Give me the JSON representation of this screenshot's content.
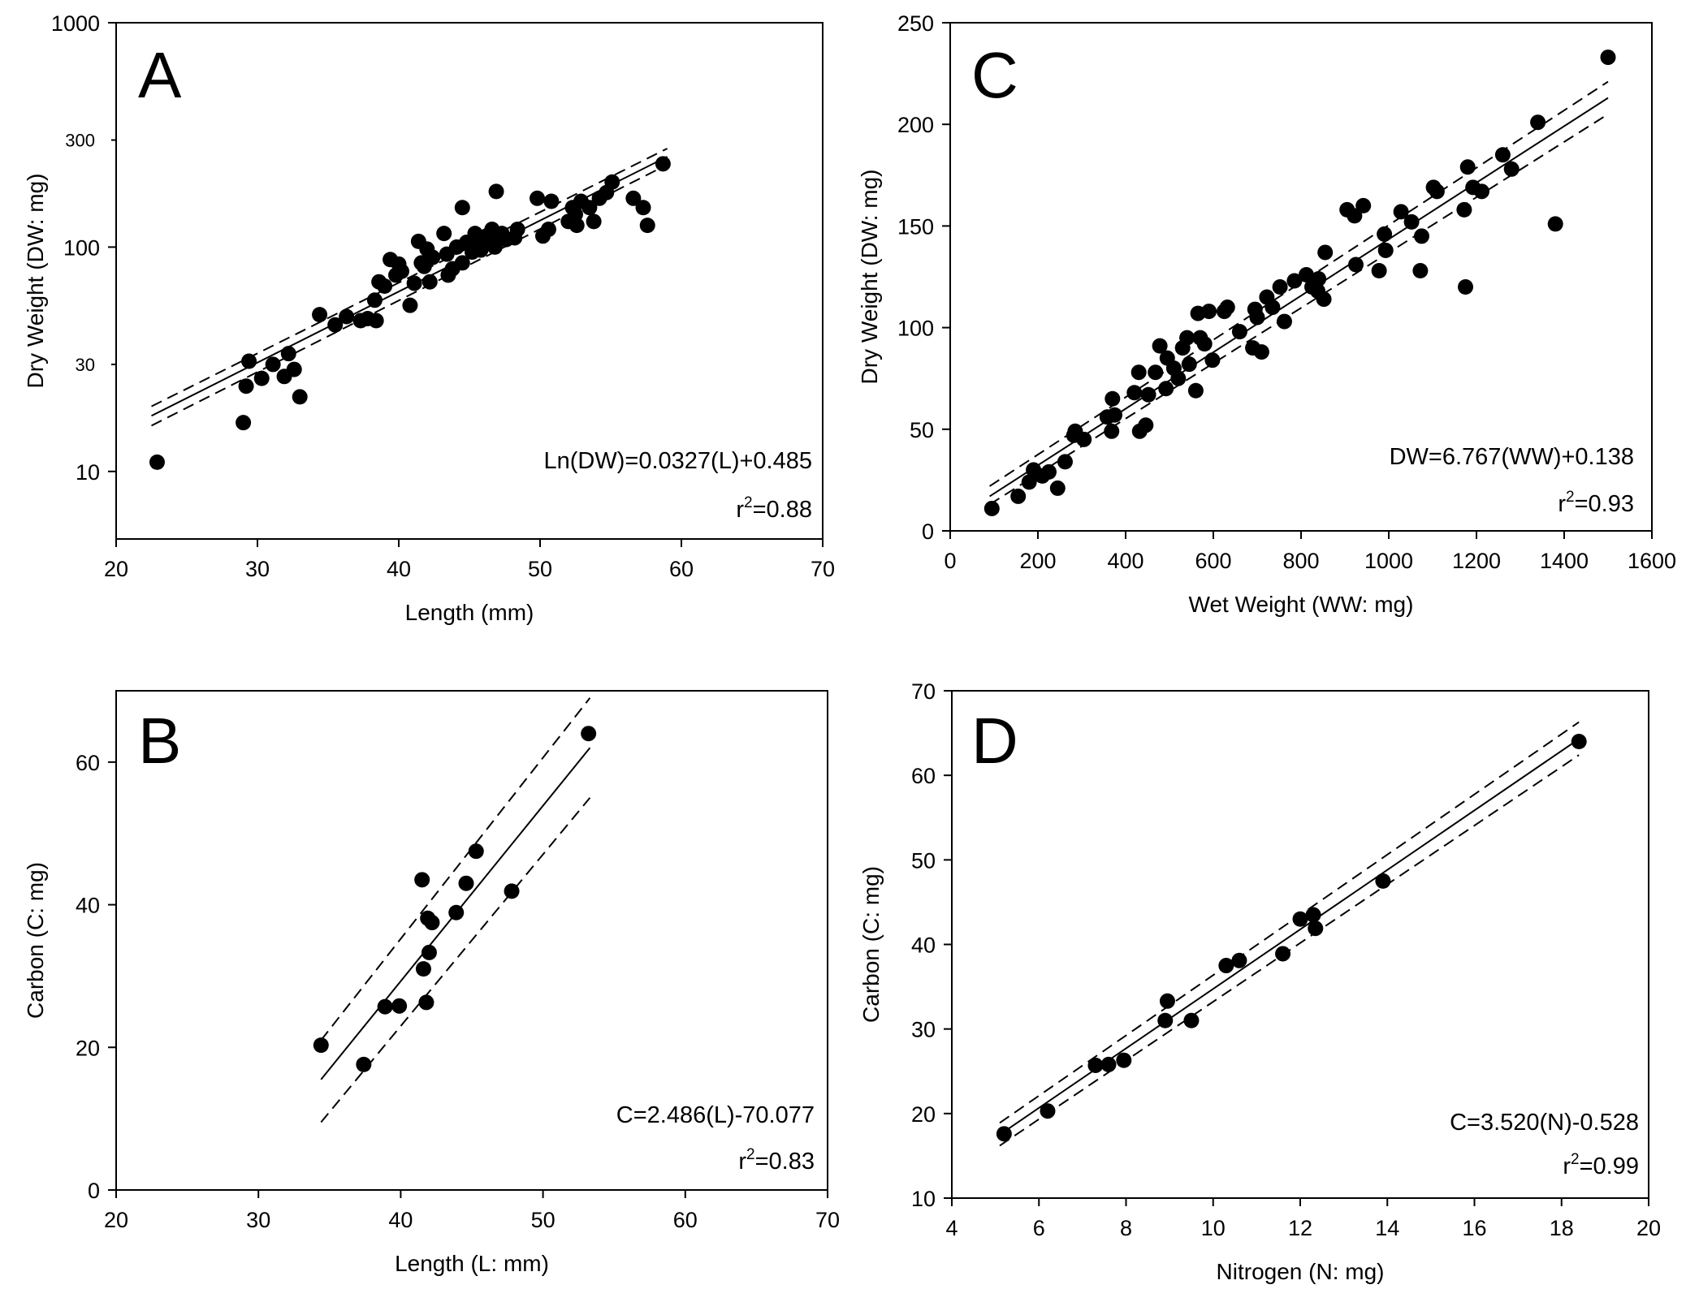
{
  "chart_data": [
    {
      "id": "A",
      "type": "scatter",
      "panel_label": "A",
      "xlabel": "Length (mm)",
      "ylabel": "Dry Weight (DW: mg)",
      "yscale": "log",
      "xlim": [
        20,
        70
      ],
      "ylim": [
        5,
        1000
      ],
      "x_ticks": [
        20,
        30,
        40,
        50,
        60,
        70
      ],
      "y_ticks_major": [
        10,
        100,
        1000
      ],
      "y_ticks_minor": [
        30,
        300
      ],
      "equation": "Ln(DW)=0.0327(L)+0.485",
      "r2_prefix": "r",
      "r2_sup": "2",
      "r2_value": "=0.88",
      "fit": {
        "x_range": [
          22.5,
          59
        ],
        "lower_at_start": 16,
        "upper_at_start": 19.5,
        "fit_at_start": 17.7,
        "fit_at_end": 253,
        "lower_at_end": 233,
        "upper_at_end": 275
      },
      "points": [
        [
          22.9,
          11
        ],
        [
          29,
          16.5
        ],
        [
          29.2,
          24
        ],
        [
          29.4,
          31
        ],
        [
          30.3,
          26
        ],
        [
          31.1,
          30
        ],
        [
          31.9,
          26.5
        ],
        [
          32.2,
          33.5
        ],
        [
          32.6,
          28.5
        ],
        [
          33,
          21.5
        ],
        [
          34.4,
          50
        ],
        [
          35.5,
          45
        ],
        [
          36.3,
          49
        ],
        [
          37.3,
          47
        ],
        [
          37.8,
          48
        ],
        [
          38.3,
          58
        ],
        [
          38.4,
          47
        ],
        [
          38.6,
          70
        ],
        [
          39,
          67
        ],
        [
          39.4,
          88
        ],
        [
          39.8,
          75
        ],
        [
          40,
          84
        ],
        [
          40.2,
          78
        ],
        [
          40.8,
          55
        ],
        [
          41.1,
          69
        ],
        [
          41.4,
          106
        ],
        [
          41.6,
          85
        ],
        [
          41.8,
          82
        ],
        [
          42,
          98
        ],
        [
          42.2,
          70
        ],
        [
          42.4,
          90
        ],
        [
          43.2,
          115
        ],
        [
          43.4,
          93
        ],
        [
          43.5,
          75
        ],
        [
          43.8,
          80
        ],
        [
          44.1,
          100
        ],
        [
          44.5,
          85
        ],
        [
          44.5,
          150
        ],
        [
          44.8,
          105
        ],
        [
          45.2,
          95
        ],
        [
          45.4,
          115
        ],
        [
          45.6,
          103
        ],
        [
          45.8,
          97
        ],
        [
          46.2,
          112
        ],
        [
          46.4,
          105
        ],
        [
          46.6,
          120
        ],
        [
          46.8,
          100
        ],
        [
          46.9,
          177
        ],
        [
          47.1,
          110
        ],
        [
          47.3,
          115
        ],
        [
          47.6,
          108
        ],
        [
          48.2,
          110
        ],
        [
          48.4,
          120
        ],
        [
          49.8,
          165
        ],
        [
          50.2,
          112
        ],
        [
          50.6,
          120
        ],
        [
          50.8,
          160
        ],
        [
          52,
          130
        ],
        [
          52.3,
          150
        ],
        [
          52.5,
          140
        ],
        [
          52.6,
          125
        ],
        [
          52.9,
          160
        ],
        [
          53.5,
          150
        ],
        [
          53.8,
          130
        ],
        [
          54.2,
          165
        ],
        [
          54.7,
          175
        ],
        [
          55.1,
          195
        ],
        [
          56.6,
          165
        ],
        [
          57.3,
          150
        ],
        [
          57.6,
          125
        ],
        [
          58.7,
          235
        ]
      ]
    },
    {
      "id": "C",
      "type": "scatter",
      "panel_label": "C",
      "xlabel": "Wet Weight (WW: mg)",
      "ylabel": "Dry Weight (DW: mg)",
      "xlim": [
        0,
        1600
      ],
      "ylim": [
        0,
        250
      ],
      "x_ticks": [
        0,
        200,
        400,
        600,
        800,
        1000,
        1200,
        1400,
        1600
      ],
      "y_ticks": [
        0,
        50,
        100,
        150,
        200,
        250
      ],
      "equation": "DW=6.767(WW)+0.138",
      "r2_prefix": "r",
      "r2_sup": "2",
      "r2_value": "=0.93",
      "fit": {
        "x_range": [
          90,
          1500
        ],
        "fit_at_start": 17,
        "lower_at_start": 13,
        "upper_at_start": 22,
        "fit_at_end": 213,
        "lower_at_end": 205,
        "upper_at_end": 221
      },
      "points": [
        [
          95,
          11
        ],
        [
          155,
          17
        ],
        [
          180,
          24
        ],
        [
          190,
          30
        ],
        [
          210,
          27
        ],
        [
          225,
          29
        ],
        [
          245,
          21
        ],
        [
          262,
          34
        ],
        [
          282,
          47
        ],
        [
          285,
          49
        ],
        [
          305,
          45
        ],
        [
          358,
          56
        ],
        [
          368,
          49
        ],
        [
          370,
          65
        ],
        [
          375,
          57
        ],
        [
          420,
          68
        ],
        [
          430,
          78
        ],
        [
          432,
          49
        ],
        [
          446,
          52
        ],
        [
          452,
          67
        ],
        [
          468,
          78
        ],
        [
          478,
          91
        ],
        [
          492,
          70
        ],
        [
          495,
          85
        ],
        [
          510,
          80
        ],
        [
          520,
          75
        ],
        [
          530,
          90
        ],
        [
          540,
          95
        ],
        [
          545,
          82
        ],
        [
          560,
          69
        ],
        [
          565,
          107
        ],
        [
          570,
          95
        ],
        [
          580,
          92
        ],
        [
          590,
          108
        ],
        [
          598,
          84
        ],
        [
          625,
          108
        ],
        [
          632,
          110
        ],
        [
          660,
          98
        ],
        [
          690,
          90
        ],
        [
          695,
          109
        ],
        [
          700,
          105
        ],
        [
          710,
          88
        ],
        [
          722,
          115
        ],
        [
          735,
          110
        ],
        [
          752,
          120
        ],
        [
          762,
          103
        ],
        [
          785,
          123
        ],
        [
          812,
          126
        ],
        [
          825,
          120
        ],
        [
          838,
          118
        ],
        [
          840,
          124
        ],
        [
          852,
          114
        ],
        [
          855,
          137
        ],
        [
          905,
          158
        ],
        [
          922,
          155
        ],
        [
          925,
          131
        ],
        [
          942,
          160
        ],
        [
          978,
          128
        ],
        [
          990,
          146
        ],
        [
          993,
          138
        ],
        [
          1028,
          157
        ],
        [
          1052,
          152
        ],
        [
          1072,
          128
        ],
        [
          1075,
          145
        ],
        [
          1102,
          169
        ],
        [
          1110,
          167
        ],
        [
          1172,
          158
        ],
        [
          1175,
          120
        ],
        [
          1180,
          179
        ],
        [
          1192,
          169
        ],
        [
          1212,
          167
        ],
        [
          1260,
          185
        ],
        [
          1280,
          178
        ],
        [
          1340,
          201
        ],
        [
          1380,
          151
        ],
        [
          1500,
          233
        ]
      ]
    },
    {
      "id": "B",
      "type": "scatter",
      "panel_label": "B",
      "xlabel": "Length (L: mm)",
      "ylabel": "Carbon (C: mg)",
      "xlim": [
        20,
        70
      ],
      "ylim": [
        0,
        70
      ],
      "x_ticks": [
        20,
        30,
        40,
        50,
        60,
        70
      ],
      "y_ticks": [
        0,
        20,
        40,
        60
      ],
      "equation": "C=2.486(L)-70.077",
      "r2_prefix": "r",
      "r2_sup": "2",
      "r2_value": "=0.83",
      "fit": {
        "x_range": [
          34.4,
          53.3
        ],
        "fit_at_start": 15.5,
        "lower_at_start": 9.5,
        "upper_at_start": 21,
        "fit_at_end": 62,
        "lower_at_end": 55,
        "upper_at_end": 69
      },
      "points": [
        [
          34.4,
          20.3
        ],
        [
          37.4,
          17.6
        ],
        [
          38.9,
          25.7
        ],
        [
          39.9,
          25.8
        ],
        [
          41.5,
          43.5
        ],
        [
          41.6,
          31
        ],
        [
          41.8,
          26.3
        ],
        [
          41.9,
          38.1
        ],
        [
          42,
          33.3
        ],
        [
          42.2,
          37.5
        ],
        [
          43.9,
          38.9
        ],
        [
          44.6,
          43
        ],
        [
          45.3,
          47.5
        ],
        [
          47.8,
          41.9
        ],
        [
          53.2,
          64
        ]
      ]
    },
    {
      "id": "D",
      "type": "scatter",
      "panel_label": "D",
      "xlabel": "Nitrogen (N: mg)",
      "ylabel": "Carbon (C: mg)",
      "xlim": [
        4,
        20
      ],
      "ylim": [
        10,
        70
      ],
      "x_ticks": [
        4,
        6,
        8,
        10,
        12,
        14,
        16,
        18,
        20
      ],
      "y_ticks": [
        10,
        20,
        30,
        40,
        50,
        60,
        70
      ],
      "equation": "C=3.520(N)-0.528",
      "r2_prefix": "r",
      "r2_sup": "2",
      "r2_value": "=0.99",
      "fit": {
        "x_range": [
          5.1,
          18.4
        ],
        "fit_at_start": 17.5,
        "lower_at_start": 16.2,
        "upper_at_start": 18.9,
        "fit_at_end": 64.3,
        "lower_at_end": 62.4,
        "upper_at_end": 66.3
      },
      "points": [
        [
          5.2,
          17.6
        ],
        [
          6.2,
          20.3
        ],
        [
          7.3,
          25.7
        ],
        [
          7.6,
          25.8
        ],
        [
          7.95,
          26.3
        ],
        [
          8.9,
          31
        ],
        [
          8.95,
          33.3
        ],
        [
          9.5,
          31
        ],
        [
          10.3,
          37.5
        ],
        [
          10.6,
          38.1
        ],
        [
          11.6,
          38.9
        ],
        [
          12,
          43
        ],
        [
          12.3,
          43.5
        ],
        [
          12.35,
          41.9
        ],
        [
          13.9,
          47.5
        ],
        [
          18.4,
          64
        ]
      ]
    }
  ]
}
